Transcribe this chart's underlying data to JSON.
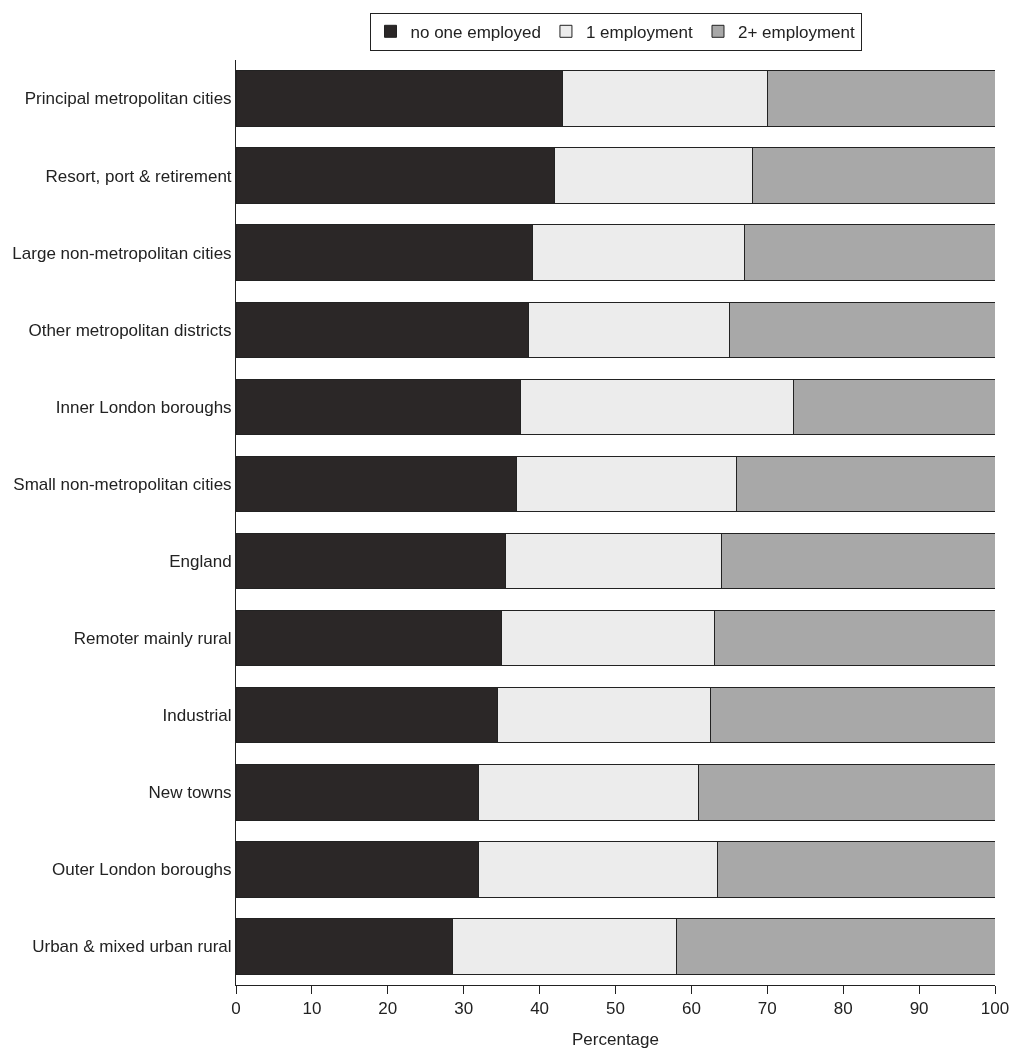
{
  "chart_data": {
    "type": "bar",
    "orientation": "horizontal",
    "stacked": true,
    "xlabel": "Percentage",
    "categories": [
      "Principal metropolitan cities",
      "Resort, port & retirement",
      "Large non-metropolitan cities",
      "Other metropolitan districts",
      "Inner London boroughs",
      "Small non-metropolitan cities",
      "England",
      "Remoter mainly rural",
      "Industrial",
      "New towns",
      "Outer London boroughs",
      "Urban & mixed urban rural"
    ],
    "series": [
      {
        "name": "no one employed",
        "color": "#2b2727",
        "values": [
          43,
          42,
          39,
          38.5,
          37.5,
          37,
          35.5,
          35,
          34.5,
          32,
          32,
          28.5
        ]
      },
      {
        "name": "1 employment",
        "color": "#ececec",
        "values": [
          27,
          26,
          28,
          26.5,
          36,
          29,
          28.5,
          28,
          28,
          29,
          31.5,
          29.5
        ]
      },
      {
        "name": "2+ employment",
        "color": "#a8a8a8",
        "values": [
          30,
          32,
          33,
          35,
          26.5,
          34,
          36,
          37,
          37.5,
          39,
          36.5,
          42
        ]
      }
    ],
    "xlim": [
      0,
      100
    ],
    "xticks": [
      0,
      10,
      20,
      30,
      40,
      50,
      60,
      70,
      80,
      90,
      100
    ],
    "legend": "top"
  }
}
